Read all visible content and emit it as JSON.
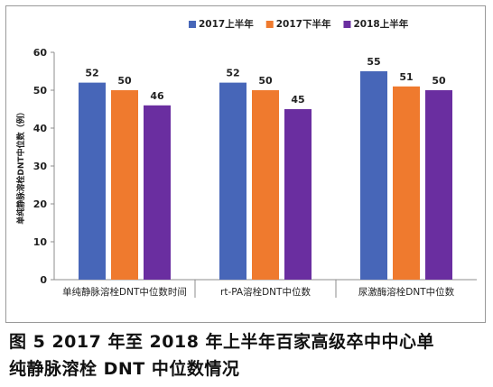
{
  "chart_data": {
    "type": "bar",
    "categories": [
      "单纯静脉溶栓DNT中位数时间",
      "rt-PA溶栓DNT中位数",
      "尿激酶溶栓DNT中位数"
    ],
    "series": [
      {
        "name": "2017上半年",
        "values": [
          52,
          52,
          55
        ],
        "color": "#4766b8"
      },
      {
        "name": "2017下半年",
        "values": [
          50,
          50,
          51
        ],
        "color": "#ef7a2e"
      },
      {
        "name": "2018上半年",
        "values": [
          46,
          45,
          50
        ],
        "color": "#6a2ea0"
      }
    ],
    "ylabel": "单纯静脉溶栓DNT中位数（例）",
    "ylim": [
      0,
      60
    ],
    "yticks": [
      0,
      10,
      20,
      30,
      40,
      50,
      60
    ],
    "legend_position": "top-right",
    "grid": false
  },
  "caption": {
    "line1": "图 5  2017 年至 2018 年上半年百家高级卒中中心单",
    "line2": "纯静脉溶栓 DNT 中位数情况"
  }
}
